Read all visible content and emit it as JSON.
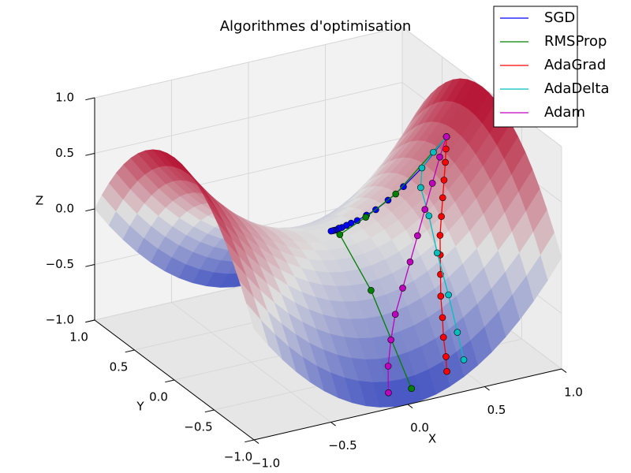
{
  "chart_data": {
    "type": "surface3d",
    "title": "Algorithmes d'optimisation",
    "xlabel": "X",
    "ylabel": "Y",
    "zlabel": "Z",
    "xlim": [
      -1,
      1
    ],
    "ylim": [
      -1,
      1
    ],
    "zlim": [
      -1,
      1
    ],
    "xticks": [
      {
        "value": -1,
        "label": "−1.0"
      },
      {
        "value": -0.5,
        "label": "−0.5"
      },
      {
        "value": 0,
        "label": "0.0"
      },
      {
        "value": 0.5,
        "label": "0.5"
      },
      {
        "value": 1,
        "label": "1.0"
      }
    ],
    "yticks": [
      {
        "value": -1,
        "label": "−1.0"
      },
      {
        "value": -0.5,
        "label": "−0.5"
      },
      {
        "value": 0,
        "label": "0.0"
      },
      {
        "value": 0.5,
        "label": "0.5"
      },
      {
        "value": 1,
        "label": "1.0"
      }
    ],
    "zticks": [
      {
        "value": -1,
        "label": "−1.0"
      },
      {
        "value": -0.5,
        "label": "−0.5"
      },
      {
        "value": 0,
        "label": "0.0"
      },
      {
        "value": 0.5,
        "label": "0.5"
      },
      {
        "value": 1,
        "label": "1.0"
      }
    ],
    "grid": true,
    "legend": "upper right",
    "series": [
      {
        "name": "SGD",
        "color": "#0000ff",
        "x": [
          0.78,
          0.62,
          0.5,
          0.4,
          0.32,
          0.26,
          0.2,
          0.16,
          0.13,
          0.1,
          0.08,
          0.06,
          0.05,
          0.04,
          0.03
        ],
        "y": [
          0.02,
          0.02,
          0.02,
          0.02,
          0.02,
          0.02,
          0.02,
          0.02,
          0.02,
          0.02,
          0.02,
          0.02,
          0.02,
          0.02,
          0.02
        ],
        "z": [
          0.61,
          0.38,
          0.25,
          0.16,
          0.1,
          0.07,
          0.04,
          0.03,
          0.02,
          0.01,
          0.01,
          0,
          0,
          0,
          0
        ]
      },
      {
        "name": "RMSProp",
        "color": "#008000",
        "x": [
          0.78,
          0.45,
          0.25,
          0.05,
          0.02,
          0.05
        ],
        "y": [
          0.02,
          0.02,
          0.01,
          -0.05,
          -0.5,
          -0.95
        ],
        "z": [
          0.61,
          0.2,
          0.06,
          0,
          -0.25,
          -0.9
        ]
      },
      {
        "name": "AdaGrad",
        "color": "#ff0000",
        "x": [
          0.78,
          0.74,
          0.7,
          0.65,
          0.6,
          0.55,
          0.5,
          0.46,
          0.42,
          0.38,
          0.35,
          0.32,
          0.3,
          0.28
        ],
        "y": [
          0.02,
          -0.05,
          -0.12,
          -0.2,
          -0.28,
          -0.36,
          -0.44,
          -0.52,
          -0.6,
          -0.68,
          -0.76,
          -0.83,
          -0.9,
          -0.95
        ],
        "z": [
          0.61,
          0.55,
          0.48,
          0.38,
          0.28,
          0.17,
          0.06,
          -0.06,
          -0.18,
          -0.32,
          -0.46,
          -0.59,
          -0.72,
          -0.82
        ]
      },
      {
        "name": "AdaDelta",
        "color": "#00bfbf",
        "x": [
          0.78,
          0.7,
          0.62,
          0.55,
          0.5,
          0.45,
          0.42,
          0.4,
          0.39
        ],
        "y": [
          0.02,
          0.03,
          0.02,
          -0.1,
          -0.3,
          -0.5,
          -0.7,
          -0.85,
          -0.95
        ],
        "z": [
          0.61,
          0.49,
          0.38,
          0.29,
          0.16,
          -0.05,
          -0.31,
          -0.56,
          -0.75
        ]
      },
      {
        "name": "Adam",
        "color": "#bf00bf",
        "x": [
          0.78,
          0.7,
          0.6,
          0.5,
          0.4,
          0.3,
          0.2,
          0.1,
          0.02,
          -0.05,
          -0.1
        ],
        "y": [
          0.02,
          -0.05,
          -0.15,
          -0.25,
          -0.35,
          -0.45,
          -0.55,
          -0.65,
          -0.75,
          -0.85,
          -0.95
        ],
        "z": [
          0.61,
          0.49,
          0.34,
          0.19,
          0.04,
          -0.11,
          -0.26,
          -0.41,
          -0.56,
          -0.72,
          -0.89
        ]
      }
    ]
  }
}
